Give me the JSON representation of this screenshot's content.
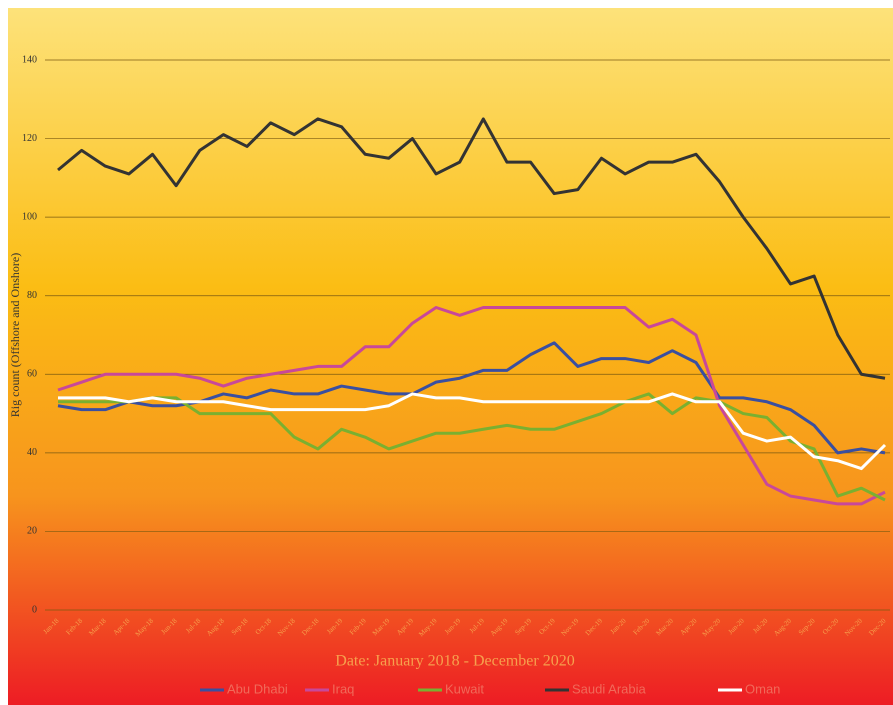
{
  "chart_data": {
    "type": "line",
    "y_label": "Rig count (Offshore and Onshore)",
    "x_label": "Date: January 2018 - December 2020",
    "categories": [
      "Jan-18",
      "Feb-18",
      "Mar-18",
      "Apr-18",
      "May-18",
      "Jun-18",
      "Jul-18",
      "Aug-18",
      "Sep-18",
      "Oct-18",
      "Nov-18",
      "Dec-18",
      "Jan-19",
      "Feb-19",
      "Mar-19",
      "Apr-19",
      "May-19",
      "Jun-19",
      "Jul-19",
      "Aug-19",
      "Sep-19",
      "Oct-19",
      "Nov-19",
      "Dec-19",
      "Jan-20",
      "Feb-20",
      "Mar-20",
      "Apr-20",
      "May-20",
      "Jun-20",
      "Jul-20",
      "Aug-20",
      "Sep-20",
      "Oct-20",
      "Nov-20",
      "Dec-20"
    ],
    "series": [
      {
        "name": "Abu Dhabi",
        "color": "#3a4fa0",
        "values": [
          52,
          51,
          51,
          53,
          52,
          52,
          53,
          55,
          54,
          56,
          55,
          55,
          57,
          56,
          55,
          55,
          58,
          59,
          61,
          61,
          65,
          68,
          62,
          64,
          64,
          63,
          66,
          63,
          54,
          54,
          53,
          51,
          47,
          40,
          41,
          40
        ]
      },
      {
        "name": "Iraq",
        "color": "#c8489a",
        "values": [
          56,
          58,
          60,
          60,
          60,
          60,
          59,
          57,
          59,
          60,
          61,
          62,
          62,
          67,
          67,
          73,
          77,
          75,
          77,
          77,
          77,
          77,
          77,
          77,
          77,
          72,
          74,
          70,
          52,
          42,
          32,
          29,
          28,
          27,
          27,
          30
        ]
      },
      {
        "name": "Kuwait",
        "color": "#7ab030",
        "values": [
          53,
          53,
          53,
          53,
          54,
          54,
          50,
          50,
          50,
          50,
          44,
          41,
          46,
          44,
          41,
          43,
          45,
          45,
          46,
          47,
          46,
          46,
          48,
          50,
          53,
          55,
          50,
          54,
          53,
          50,
          49,
          43,
          41,
          29,
          31,
          28
        ]
      },
      {
        "name": "Saudi Arabia",
        "color": "#333333",
        "values": [
          112,
          117,
          113,
          111,
          116,
          108,
          117,
          121,
          118,
          124,
          121,
          125,
          123,
          116,
          115,
          120,
          111,
          114,
          125,
          114,
          114,
          106,
          107,
          115,
          111,
          114,
          114,
          116,
          109,
          100,
          92,
          83,
          85,
          70,
          60,
          59
        ]
      },
      {
        "name": "Oman",
        "color": "#ffffff",
        "values": [
          54,
          54,
          54,
          53,
          54,
          53,
          53,
          53,
          52,
          51,
          51,
          51,
          51,
          51,
          52,
          55,
          54,
          54,
          53,
          53,
          53,
          53,
          53,
          53,
          53,
          53,
          55,
          53,
          53,
          45,
          43,
          44,
          39,
          38,
          36,
          42
        ]
      }
    ],
    "ylim": [
      0,
      140
    ],
    "yticks": [
      0,
      20,
      40,
      60,
      80,
      100,
      120,
      140
    ],
    "grid": true,
    "legend": "bottom"
  }
}
